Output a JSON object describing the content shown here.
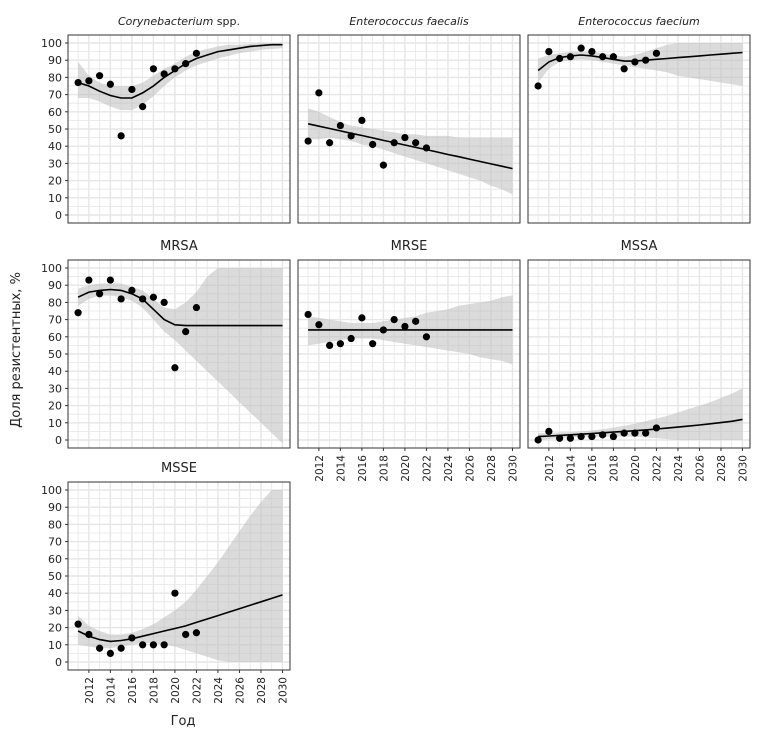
{
  "chart_data": {
    "type": "scatter",
    "xlabel": "Год",
    "ylabel": "Доля резистентных, %",
    "xlim": [
      2011,
      2030
    ],
    "ylim": [
      0,
      100
    ],
    "x_ticks": [
      "2012",
      "2014",
      "2016",
      "2018",
      "2020",
      "2022",
      "2024",
      "2026",
      "2028",
      "2030"
    ],
    "y_ticks": [
      "0",
      "10",
      "20",
      "30",
      "40",
      "50",
      "60",
      "70",
      "80",
      "90",
      "100"
    ],
    "grid": true,
    "point_years": [
      2011,
      2012,
      2013,
      2014,
      2015,
      2016,
      2017,
      2018,
      2019,
      2020,
      2021,
      2022
    ],
    "fit_years_range": [
      2011,
      2030
    ],
    "panels": [
      {
        "title": "Corynebacterium spp.",
        "italic_part": "Corynebacterium",
        "suffix": " spp.",
        "points": [
          77,
          78,
          81,
          76,
          46,
          73,
          63,
          85,
          82,
          85,
          88,
          94
        ],
        "fit": [
          77,
          75,
          72,
          69.5,
          68,
          68,
          71,
          75,
          80,
          84,
          88,
          91,
          93,
          95,
          96,
          97,
          98,
          98.5,
          99,
          99
        ],
        "lo": [
          68,
          68,
          66,
          63,
          61,
          61,
          64,
          69,
          75,
          80,
          84,
          87,
          89,
          91,
          92.5,
          94,
          95,
          96,
          96.5,
          97
        ],
        "hi": [
          89,
          81,
          77,
          75,
          75,
          75,
          77,
          81,
          85,
          88,
          92,
          95,
          96.5,
          98,
          99,
          99,
          99.5,
          100,
          100,
          100
        ]
      },
      {
        "title": "Enterococcus faecalis",
        "italic_part": "Enterococcus faecalis",
        "suffix": "",
        "points": [
          43,
          71,
          42,
          52,
          46,
          55,
          41,
          29,
          42,
          45,
          42,
          39
        ],
        "fit": [
          53,
          51.6,
          50.3,
          48.9,
          47.5,
          46.2,
          44.8,
          43.4,
          42.1,
          40.7,
          39.3,
          38,
          36.6,
          35.2,
          33.9,
          32.5,
          31.1,
          29.7,
          28.4,
          27
        ],
        "lo": [
          44,
          44,
          45,
          44,
          43,
          41,
          40,
          38,
          36,
          34,
          32,
          30,
          28,
          26,
          24,
          22,
          20,
          17,
          15,
          12
        ],
        "hi": [
          62,
          60,
          57,
          54,
          52,
          51,
          50,
          49,
          48,
          47,
          47,
          46,
          46,
          46,
          45,
          45,
          45,
          45,
          45,
          45
        ]
      },
      {
        "title": "Enterococcus faecium",
        "italic_part": "Enterococcus faecium",
        "suffix": "",
        "points": [
          75,
          95,
          91,
          92,
          97,
          95,
          92,
          92,
          85,
          89,
          90,
          94
        ],
        "fit": [
          84,
          89,
          91.5,
          92.5,
          93,
          92.5,
          91.5,
          90.5,
          89.5,
          89.5,
          90,
          90.5,
          91,
          91.5,
          92,
          92.5,
          93,
          93.5,
          94,
          94.5
        ],
        "lo": [
          77,
          85,
          89,
          90,
          90.5,
          90,
          89,
          88,
          87,
          86,
          85,
          84,
          83,
          81,
          80,
          79,
          78,
          77,
          76,
          75
        ],
        "hi": [
          91,
          93,
          94,
          95,
          95,
          95,
          94,
          93,
          92,
          93,
          95,
          97,
          99,
          100,
          100,
          100,
          100,
          100,
          100,
          100
        ]
      },
      {
        "title": "MRSA",
        "italic_part": "",
        "suffix": "MRSA",
        "points": [
          74,
          93,
          85,
          93,
          82,
          87,
          82,
          83,
          80,
          42,
          63,
          77
        ],
        "fit": [
          83,
          86,
          87,
          87.5,
          87,
          85,
          82,
          76,
          70,
          67,
          66.5,
          66.5,
          66.5,
          66.5,
          66.5,
          66.5,
          66.5,
          66.5,
          66.5,
          66.5
        ],
        "lo": [
          78,
          82,
          84,
          84,
          83,
          81,
          77,
          70,
          63,
          58,
          52,
          46,
          40,
          34,
          28,
          22,
          16,
          10,
          4,
          -2
        ],
        "hi": [
          88,
          90,
          91,
          91,
          91,
          89,
          87,
          82,
          77,
          76,
          80,
          86,
          95,
          100,
          100,
          100,
          100,
          100,
          100,
          100
        ]
      },
      {
        "title": "MRSE",
        "italic_part": "",
        "suffix": "MRSE",
        "points": [
          73,
          67,
          55,
          56,
          59,
          71,
          56,
          64,
          70,
          66,
          69,
          60
        ],
        "fit": [
          64,
          64,
          64,
          64,
          64,
          64,
          64,
          64,
          64,
          64,
          64,
          64,
          64,
          64,
          64,
          64,
          64,
          64,
          64,
          64
        ],
        "lo": [
          55,
          56,
          57,
          58,
          59,
          59,
          59,
          58,
          57,
          56,
          55,
          54,
          53,
          52,
          51,
          50,
          48,
          47,
          46,
          44
        ],
        "hi": [
          72,
          71,
          70,
          69,
          68,
          68,
          68,
          69,
          70,
          71,
          72,
          74,
          75,
          76,
          78,
          79,
          80,
          81,
          83,
          84
        ]
      },
      {
        "title": "MSSA",
        "italic_part": "",
        "suffix": "MSSA",
        "points": [
          0,
          5,
          1,
          1,
          2,
          2,
          3,
          2,
          4,
          4,
          4,
          7
        ],
        "fit": [
          2,
          2.3,
          2.7,
          3,
          3.4,
          3.8,
          4.2,
          4.6,
          5,
          5.4,
          5.9,
          6.4,
          6.9,
          7.5,
          8.1,
          8.7,
          9.4,
          10.1,
          10.9,
          12
        ],
        "lo": [
          0,
          0.5,
          1,
          1.5,
          1.8,
          2,
          2,
          2,
          2,
          1.8,
          1.5,
          1,
          0.5,
          0,
          0,
          0,
          0,
          0,
          0,
          0
        ],
        "hi": [
          4,
          4,
          4.5,
          4.6,
          5,
          5.5,
          6.3,
          7.2,
          8.3,
          9.5,
          11,
          12.5,
          14,
          16,
          18,
          20,
          22,
          24.5,
          27,
          30
        ]
      },
      {
        "title": "MSSE",
        "italic_part": "",
        "suffix": "MSSE",
        "points": [
          22,
          16,
          8,
          5,
          8,
          14,
          10,
          10,
          10,
          40,
          16,
          17
        ],
        "fit": [
          18,
          15,
          13,
          12,
          12.5,
          13.5,
          15,
          16.5,
          18,
          19.5,
          21,
          23,
          25,
          27,
          29,
          31,
          33,
          35,
          37,
          39
        ],
        "lo": [
          10,
          9,
          8,
          8,
          9,
          10,
          11,
          11,
          10,
          9,
          7,
          5,
          3,
          1,
          0,
          0,
          0,
          0,
          0,
          0
        ],
        "hi": [
          27,
          21,
          18,
          16,
          16,
          17,
          19,
          22,
          26,
          30,
          35,
          42,
          50,
          58,
          67,
          76,
          85,
          93,
          100,
          100
        ]
      }
    ]
  }
}
